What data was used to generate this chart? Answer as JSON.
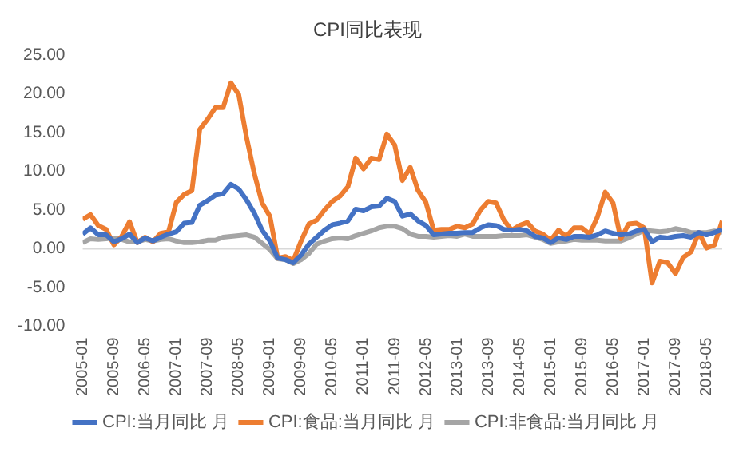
{
  "chart_data": {
    "type": "line",
    "title": "CPI同比表现",
    "marker": "none",
    "line_style": "solid",
    "grid": false,
    "legend": "bottom",
    "ref_lines": [
      {
        "axis": "y",
        "value": 0,
        "color": "#d9d9d9"
      }
    ],
    "x": [
      "2005-01",
      "2005-03",
      "2005-05",
      "2005-07",
      "2005-09",
      "2005-11",
      "2006-01",
      "2006-03",
      "2006-05",
      "2006-07",
      "2006-09",
      "2006-11",
      "2007-01",
      "2007-03",
      "2007-05",
      "2007-07",
      "2007-09",
      "2007-11",
      "2008-01",
      "2008-03",
      "2008-05",
      "2008-07",
      "2008-09",
      "2008-11",
      "2009-01",
      "2009-03",
      "2009-05",
      "2009-07",
      "2009-09",
      "2009-11",
      "2010-01",
      "2010-03",
      "2010-05",
      "2010-07",
      "2010-09",
      "2010-11",
      "2011-01",
      "2011-03",
      "2011-05",
      "2011-07",
      "2011-09",
      "2011-11",
      "2012-01",
      "2012-03",
      "2012-05",
      "2012-07",
      "2012-09",
      "2012-11",
      "2013-01",
      "2013-03",
      "2013-05",
      "2013-07",
      "2013-09",
      "2013-11",
      "2014-01",
      "2014-03",
      "2014-05",
      "2014-07",
      "2014-09",
      "2014-11",
      "2015-01",
      "2015-03",
      "2015-05",
      "2015-07",
      "2015-09",
      "2015-11",
      "2016-01",
      "2016-03",
      "2016-05",
      "2016-07",
      "2016-09",
      "2016-11",
      "2017-01",
      "2017-03",
      "2017-05",
      "2017-07",
      "2017-09",
      "2017-11",
      "2018-01",
      "2018-03",
      "2018-05",
      "2018-07",
      "2018-09"
    ],
    "xlim": [
      "2005-01",
      "2018-09"
    ],
    "xticks": [
      "2005-01",
      "2005-09",
      "2006-05",
      "2007-01",
      "2007-09",
      "2008-05",
      "2009-01",
      "2009-09",
      "2010-05",
      "2011-01",
      "2011-09",
      "2012-05",
      "2013-01",
      "2013-09",
      "2014-05",
      "2015-01",
      "2015-09",
      "2016-05",
      "2017-01",
      "2017-09",
      "2018-05"
    ],
    "ylim": [
      -10,
      25
    ],
    "yticks": [
      {
        "value": -10,
        "label": "-10.00"
      },
      {
        "value": -5,
        "label": "-5.00"
      },
      {
        "value": 0,
        "label": "0.00"
      },
      {
        "value": 5,
        "label": "5.00"
      },
      {
        "value": 10,
        "label": "10.00"
      },
      {
        "value": 15,
        "label": "15.00"
      },
      {
        "value": 20,
        "label": "20.00"
      },
      {
        "value": 25,
        "label": "25.00"
      }
    ],
    "series": [
      {
        "name": "CPI:当月同比 月",
        "color": "#4472c4",
        "values": [
          1.9,
          2.7,
          1.8,
          1.8,
          0.9,
          1.3,
          1.9,
          0.8,
          1.4,
          1.0,
          1.5,
          1.9,
          2.2,
          3.3,
          3.4,
          5.6,
          6.2,
          6.9,
          7.1,
          8.3,
          7.7,
          6.3,
          4.6,
          2.4,
          1.0,
          -1.2,
          -1.4,
          -1.8,
          -0.8,
          0.6,
          1.5,
          2.4,
          3.1,
          3.3,
          3.6,
          5.1,
          4.9,
          5.4,
          5.5,
          6.5,
          6.1,
          4.2,
          4.5,
          3.6,
          3.0,
          1.8,
          1.9,
          2.0,
          2.0,
          2.1,
          2.1,
          2.7,
          3.1,
          3.0,
          2.5,
          2.4,
          2.5,
          2.3,
          1.6,
          1.4,
          0.8,
          1.4,
          1.2,
          1.6,
          1.6,
          1.5,
          1.8,
          2.3,
          2.0,
          1.8,
          1.9,
          2.3,
          2.5,
          0.9,
          1.5,
          1.4,
          1.6,
          1.7,
          1.5,
          2.1,
          1.8,
          2.1,
          2.5
        ]
      },
      {
        "name": "CPI:食品:当月同比 月",
        "color": "#ed7d31",
        "values": [
          3.8,
          4.4,
          3.0,
          2.5,
          0.5,
          1.6,
          3.5,
          0.8,
          1.5,
          0.9,
          2.0,
          2.2,
          6.0,
          7.0,
          7.5,
          15.4,
          16.7,
          18.2,
          18.2,
          21.4,
          19.9,
          14.4,
          9.7,
          5.9,
          4.2,
          -1.2,
          -1.0,
          -1.5,
          1.0,
          3.2,
          3.7,
          5.0,
          6.1,
          6.8,
          8.0,
          11.7,
          10.3,
          11.7,
          11.5,
          14.8,
          13.4,
          8.8,
          10.5,
          7.5,
          6.0,
          2.4,
          2.5,
          2.5,
          2.9,
          2.7,
          3.2,
          5.0,
          6.1,
          5.9,
          3.7,
          2.4,
          3.0,
          3.4,
          2.3,
          1.9,
          1.1,
          2.4,
          1.6,
          2.7,
          2.7,
          1.9,
          4.1,
          7.3,
          5.9,
          1.3,
          3.2,
          3.3,
          2.7,
          -4.4,
          -1.6,
          -1.8,
          -3.2,
          -1.1,
          -0.4,
          2.1,
          0.1,
          0.5,
          3.6
        ]
      },
      {
        "name": "CPI:非食品:当月同比 月",
        "color": "#a5a5a5",
        "values": [
          0.8,
          1.3,
          1.2,
          1.3,
          1.4,
          1.2,
          0.9,
          0.9,
          1.2,
          1.0,
          1.2,
          1.3,
          1.0,
          0.8,
          0.8,
          0.9,
          1.1,
          1.1,
          1.5,
          1.6,
          1.7,
          1.8,
          1.5,
          0.7,
          -0.1,
          -1.3,
          -1.4,
          -1.9,
          -1.4,
          -0.6,
          0.6,
          1.0,
          1.3,
          1.4,
          1.3,
          1.7,
          2.0,
          2.3,
          2.7,
          2.9,
          2.9,
          2.6,
          1.9,
          1.6,
          1.6,
          1.5,
          1.6,
          1.7,
          1.6,
          1.9,
          1.6,
          1.6,
          1.6,
          1.6,
          1.7,
          1.7,
          1.7,
          1.8,
          1.5,
          1.2,
          0.7,
          0.9,
          1.0,
          1.2,
          1.1,
          1.1,
          1.1,
          1.0,
          1.0,
          1.0,
          1.4,
          1.9,
          2.4,
          2.3,
          2.2,
          2.3,
          2.6,
          2.4,
          2.1,
          2.1,
          2.1,
          2.3,
          2.1
        ]
      }
    ]
  }
}
